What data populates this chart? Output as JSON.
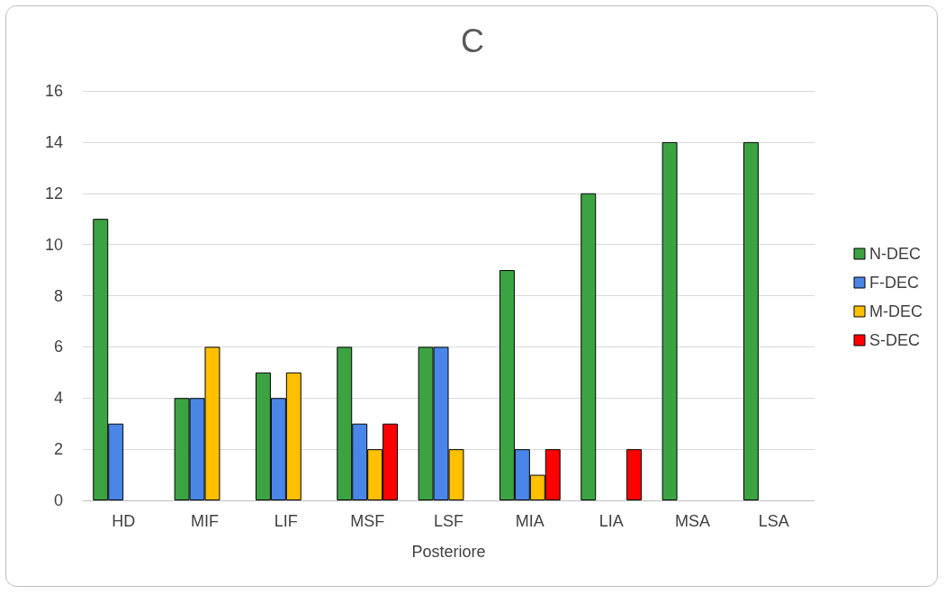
{
  "chart_data": {
    "type": "bar",
    "title": "C",
    "xlabel": "Posteriore",
    "categories": [
      "HD",
      "MIF",
      "LIF",
      "MSF",
      "LSF",
      "MIA",
      "LIA",
      "MSA",
      "LSA"
    ],
    "series": [
      {
        "name": "N-DEC",
        "color": "#3ca342",
        "values": [
          11,
          4,
          5,
          6,
          6,
          9,
          12,
          14,
          14
        ]
      },
      {
        "name": "F-DEC",
        "color": "#4a86e8",
        "values": [
          3,
          4,
          4,
          3,
          6,
          2,
          null,
          null,
          null
        ]
      },
      {
        "name": "M-DEC",
        "color": "#ffc000",
        "values": [
          null,
          6,
          5,
          2,
          2,
          1,
          null,
          null,
          null
        ]
      },
      {
        "name": "S-DEC",
        "color": "#ff0000",
        "values": [
          null,
          null,
          null,
          3,
          null,
          2,
          2,
          null,
          null
        ]
      }
    ],
    "ylim": [
      0,
      16
    ],
    "yticks": [
      0,
      2,
      4,
      6,
      8,
      10,
      12,
      14,
      16
    ],
    "grid": "y",
    "legend": "right"
  }
}
